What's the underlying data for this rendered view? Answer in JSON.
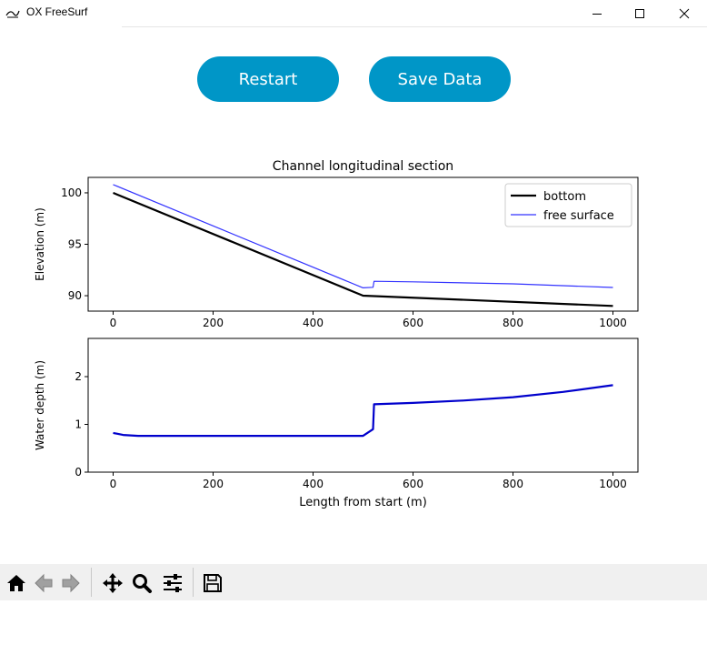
{
  "window": {
    "title": "OX FreeSurf",
    "controls": [
      "minimize",
      "maximize",
      "close"
    ]
  },
  "buttons": {
    "restart_label": "Restart",
    "save_label": "Save Data",
    "color": "#0096c7"
  },
  "toolbar": {
    "icons": [
      "home-icon",
      "back-icon",
      "forward-icon",
      "pan-icon",
      "zoom-icon",
      "configure-subplots-icon",
      "save-icon"
    ]
  },
  "chart_data": [
    {
      "type": "line",
      "title": "Channel longitudinal section",
      "xlabel": "",
      "ylabel": "Elevation (m)",
      "xlim": [
        -50,
        1050
      ],
      "ylim": [
        88.5,
        101.5
      ],
      "xticks": [
        0,
        200,
        400,
        600,
        800,
        1000
      ],
      "yticks": [
        90,
        95,
        100
      ],
      "legend_position": "top-right",
      "series": [
        {
          "name": "bottom",
          "color": "#000000",
          "x": [
            0,
            500,
            1000
          ],
          "y": [
            100,
            90,
            89
          ]
        },
        {
          "name": "free surface",
          "color": "#3333ff",
          "x": [
            0,
            500,
            520,
            522,
            600,
            800,
            1000
          ],
          "y": [
            100.8,
            90.76,
            90.82,
            91.4,
            91.35,
            91.15,
            90.8
          ]
        }
      ]
    },
    {
      "type": "line",
      "title": "",
      "xlabel": "Length from start (m)",
      "ylabel": "Water depth (m)",
      "xlim": [
        -50,
        1050
      ],
      "ylim": [
        0,
        2.8
      ],
      "xticks": [
        0,
        200,
        400,
        600,
        800,
        1000
      ],
      "yticks": [
        0,
        1,
        2
      ],
      "series": [
        {
          "name": "",
          "color": "#0000cc",
          "x": [
            0,
            20,
            50,
            100,
            200,
            300,
            400,
            500,
            520,
            522,
            600,
            700,
            800,
            900,
            1000
          ],
          "y": [
            0.82,
            0.78,
            0.76,
            0.76,
            0.76,
            0.76,
            0.76,
            0.76,
            0.9,
            1.42,
            1.45,
            1.5,
            1.57,
            1.68,
            1.82
          ]
        }
      ]
    }
  ]
}
